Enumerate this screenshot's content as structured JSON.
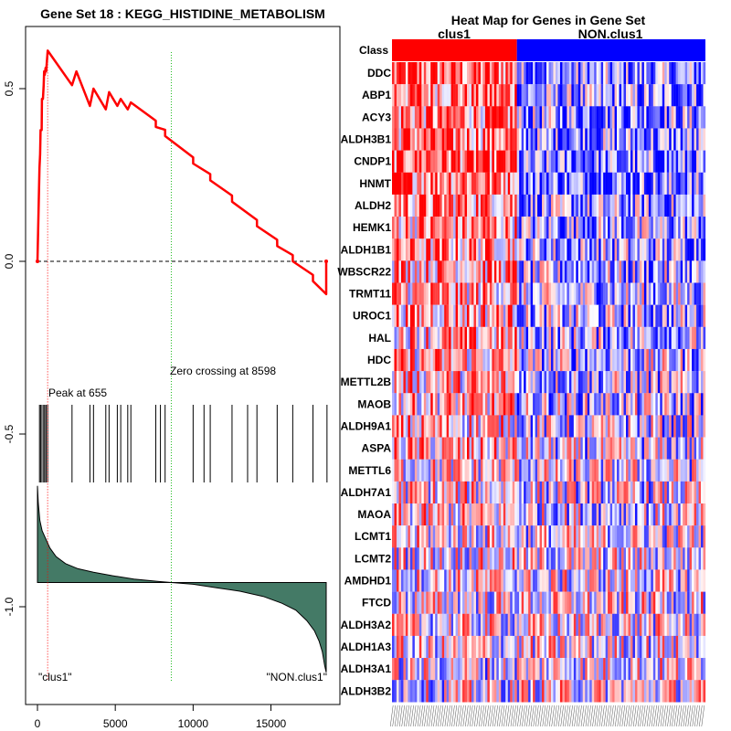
{
  "chart_data": [
    {
      "type": "line",
      "title": "Gene Set  18 : KEGG_HISTIDINE_METABOLISM",
      "xlabel": "",
      "ylabel": "",
      "xlim": [
        0,
        18500
      ],
      "ylim": [
        -1.25,
        0.65
      ],
      "x_ticks": [
        0,
        5000,
        10000,
        15000
      ],
      "x_tick_labels": [
        "0",
        "5000",
        "10000",
        "15000"
      ],
      "y_ticks": [
        0.5,
        0.0,
        -0.5,
        -1.0
      ],
      "y_tick_labels": [
        "0.5",
        "0.0",
        "-0.5",
        "-1.0"
      ],
      "peak_position": 655,
      "peak_label": "Peak at 655",
      "zero_crossing": 8598,
      "zero_crossing_label": "Zero crossing at 8598",
      "left_class_label": "\"clus1\"",
      "right_class_label": "\"NON.clus1\"",
      "colors": {
        "es_line": "#ff0000",
        "peak_line": "#ff0000",
        "zero_line": "#22bb22",
        "ranked_fill": "#447a66"
      },
      "es_curve": {
        "x": [
          0,
          130,
          170,
          200,
          270,
          290,
          350,
          400,
          430,
          470,
          520,
          560,
          655,
          2220,
          2500,
          3370,
          3600,
          4390,
          4600,
          5130,
          5350,
          5800,
          6000,
          18550,
          18550
        ],
        "y": [
          0.0,
          0.27,
          0.31,
          0.38,
          0.38,
          0.47,
          0.47,
          0.51,
          0.55,
          0.54,
          0.56,
          0.55,
          0.61,
          0.51,
          0.55,
          0.45,
          0.5,
          0.44,
          0.49,
          0.45,
          0.47,
          0.44,
          0.46,
          -0.095,
          0.0
        ]
      },
      "es_drops": [
        {
          "x": 7600,
          "y": 0.38
        },
        {
          "x": 8200,
          "y": 0.34
        },
        {
          "x": 10000,
          "y": 0.22
        },
        {
          "x": 11100,
          "y": 0.17
        },
        {
          "x": 12500,
          "y": 0.12
        },
        {
          "x": 14100,
          "y": 0.03
        },
        {
          "x": 15400,
          "y": 0.0
        },
        {
          "x": 16400,
          "y": -0.03
        },
        {
          "x": 17700,
          "y": -0.07
        }
      ],
      "hit_positions": [
        130,
        200,
        290,
        400,
        470,
        560,
        655,
        2220,
        3370,
        3600,
        4390,
        4600,
        5130,
        5350,
        5800,
        6000,
        7600,
        7900,
        8200,
        10000,
        10700,
        11100,
        12500,
        13500,
        14100,
        15400,
        16400,
        17700,
        18600
      ],
      "ranked_metric": {
        "x": [
          0,
          50,
          150,
          300,
          500,
          800,
          1200,
          1800,
          2600,
          3600,
          4800,
          6200,
          7800,
          8598,
          10000,
          11500,
          13000,
          14500,
          15700,
          16600,
          17300,
          17800,
          18100,
          18300,
          18450,
          18550
        ],
        "y": [
          -0.65,
          -0.7,
          -0.75,
          -0.78,
          -0.8,
          -0.83,
          -0.855,
          -0.875,
          -0.89,
          -0.9,
          -0.91,
          -0.92,
          -0.927,
          -0.93,
          -0.935,
          -0.945,
          -0.955,
          -0.97,
          -0.99,
          -1.01,
          -1.04,
          -1.07,
          -1.1,
          -1.13,
          -1.17,
          -1.19
        ]
      },
      "ranked_baseline": -0.93
    },
    {
      "type": "heatmap",
      "title": "Heat Map for Genes in Gene Set",
      "class_row_label": "Class",
      "class_labels": [
        "clus1",
        "NON.clus1"
      ],
      "class_colors": [
        "#ff0000",
        "#0000ff"
      ],
      "n_samples": 138,
      "n_class1": 55,
      "genes": [
        "DDC",
        "ABP1",
        "ACY3",
        "ALDH3B1",
        "CNDP1",
        "HNMT",
        "ALDH2",
        "HEMK1",
        "ALDH1B1",
        "WBSCR22",
        "TRMT11",
        "UROC1",
        "HAL",
        "HDC",
        "METTL2B",
        "MAOB",
        "ALDH9A1",
        "ASPA",
        "METTL6",
        "ALDH7A1",
        "MAOA",
        "LCMT1",
        "LCMT2",
        "AMDHD1",
        "FTCD",
        "ALDH3A2",
        "ALDH1A3",
        "ALDH3A1",
        "ALDH3B2"
      ],
      "row_bias": [
        0.6,
        0.55,
        0.5,
        0.55,
        0.7,
        0.65,
        0.5,
        0.4,
        0.4,
        0.4,
        0.3,
        0.35,
        0.3,
        0.25,
        0.25,
        0.25,
        0.2,
        0.2,
        0.1,
        0.1,
        0.1,
        0.05,
        0.05,
        0.05,
        0.0,
        0.0,
        0.0,
        -0.05,
        -0.05
      ],
      "scale": {
        "low": "#0000ff",
        "mid": "#ffffff",
        "high": "#ff0000"
      }
    }
  ]
}
